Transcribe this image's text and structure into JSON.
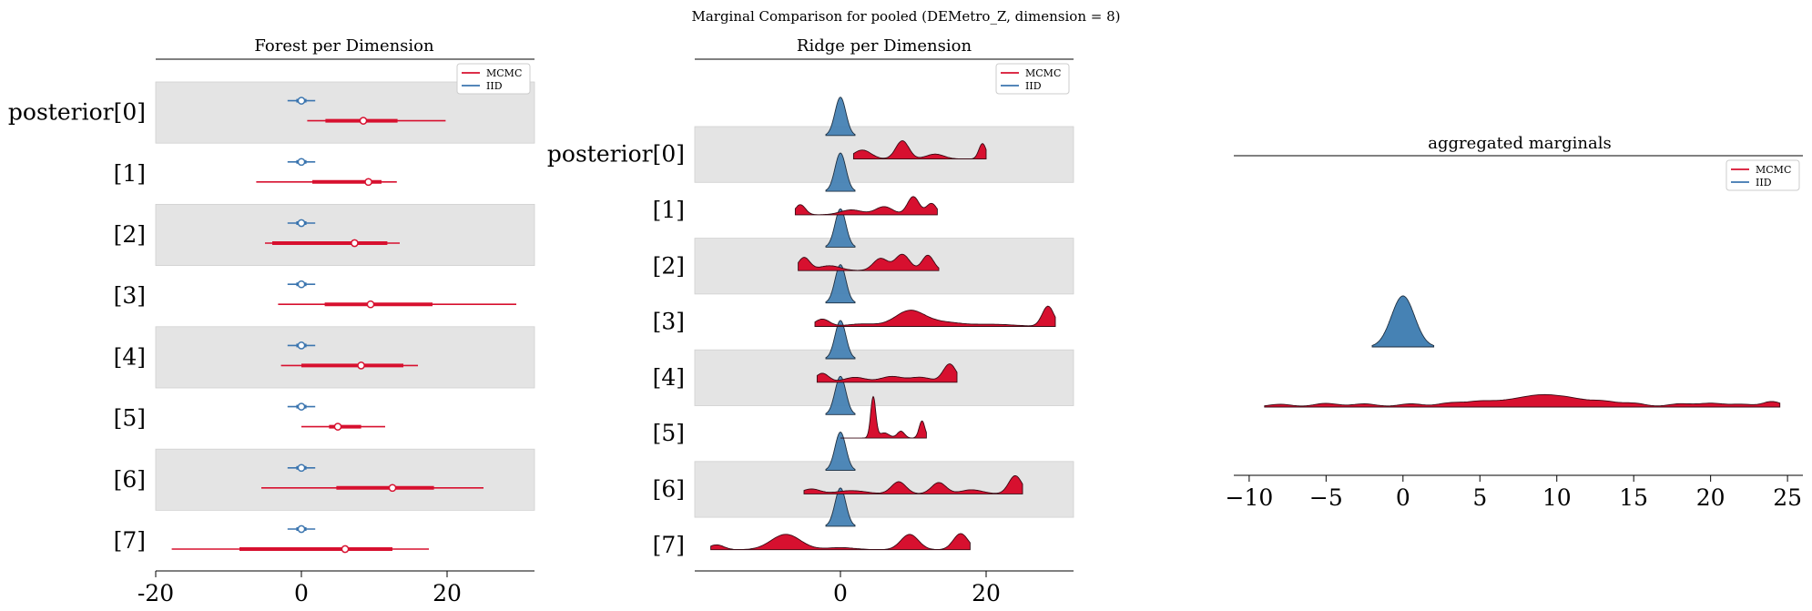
{
  "figure": {
    "suptitle": "Marginal Comparison for pooled (DEMetro_Z, dimension = 8)"
  },
  "legend": {
    "labels": [
      "MCMC",
      "IID"
    ]
  },
  "colors": {
    "mcmc": "#d7102f",
    "iid": "#3b75af",
    "band": "#e4e4e4",
    "iid_fill": "#4682b4"
  },
  "row_labels": [
    "posterior[0]",
    "[1]",
    "[2]",
    "[3]",
    "[4]",
    "[5]",
    "[6]",
    "[7]"
  ],
  "chart_data": [
    {
      "type": "forest",
      "title": "Forest per Dimension",
      "xlim": [
        -20,
        32
      ],
      "xticks": [
        "-20",
        "0",
        "20"
      ],
      "xtick_values": [
        -20,
        0,
        20
      ],
      "series": [
        {
          "name": "MCMC",
          "rows": [
            {
              "mean": 8.5,
              "hdi94": [
                0.8,
                19.8
              ],
              "iqr": [
                3.3,
                13.2
              ]
            },
            {
              "mean": 9.2,
              "hdi94": [
                -6.2,
                13.1
              ],
              "iqr": [
                1.5,
                11.0
              ]
            },
            {
              "mean": 7.3,
              "hdi94": [
                -5.0,
                13.5
              ],
              "iqr": [
                -4.0,
                11.8
              ]
            },
            {
              "mean": 9.5,
              "hdi94": [
                -3.2,
                29.5
              ],
              "iqr": [
                3.2,
                18.0
              ]
            },
            {
              "mean": 8.2,
              "hdi94": [
                -2.8,
                16.0
              ],
              "iqr": [
                0.0,
                14.0
              ]
            },
            {
              "mean": 5.0,
              "hdi94": [
                0.0,
                11.5
              ],
              "iqr": [
                3.8,
                8.2
              ]
            },
            {
              "mean": 12.5,
              "hdi94": [
                -5.5,
                25.0
              ],
              "iqr": [
                4.8,
                18.2
              ]
            },
            {
              "mean": 6.0,
              "hdi94": [
                -17.8,
                17.5
              ],
              "iqr": [
                -8.5,
                12.5
              ]
            }
          ]
        },
        {
          "name": "IID",
          "rows": [
            {
              "mean": 0.0,
              "hdi94": [
                -1.9,
                1.9
              ],
              "iqr": [
                -0.7,
                0.7
              ]
            },
            {
              "mean": 0.0,
              "hdi94": [
                -1.9,
                1.9
              ],
              "iqr": [
                -0.7,
                0.7
              ]
            },
            {
              "mean": 0.0,
              "hdi94": [
                -1.9,
                1.9
              ],
              "iqr": [
                -0.7,
                0.7
              ]
            },
            {
              "mean": 0.0,
              "hdi94": [
                -1.9,
                1.9
              ],
              "iqr": [
                -0.7,
                0.7
              ]
            },
            {
              "mean": 0.0,
              "hdi94": [
                -1.9,
                1.9
              ],
              "iqr": [
                -0.7,
                0.7
              ]
            },
            {
              "mean": 0.0,
              "hdi94": [
                -1.9,
                1.9
              ],
              "iqr": [
                -0.7,
                0.7
              ]
            },
            {
              "mean": 0.0,
              "hdi94": [
                -1.9,
                1.9
              ],
              "iqr": [
                -0.7,
                0.7
              ]
            },
            {
              "mean": 0.0,
              "hdi94": [
                -1.9,
                1.9
              ],
              "iqr": [
                -0.7,
                0.7
              ]
            }
          ]
        }
      ]
    },
    {
      "type": "ridge",
      "title": "Ridge per Dimension",
      "xlim": [
        -20,
        32
      ],
      "xticks": [
        "0",
        "20"
      ],
      "xtick_values": [
        0,
        20
      ],
      "series": [
        {
          "name": "MCMC",
          "rows": [
            {
              "range": [
                1.8,
                20.0
              ],
              "peaks": [
                [
                  3,
                  0.22,
                  1.2
                ],
                [
                  8.5,
                  0.45,
                  0.9
                ],
                [
                  13,
                  0.12,
                  1.2
                ],
                [
                  19.5,
                  0.38,
                  0.5
                ]
              ]
            },
            {
              "range": [
                -6.2,
                13.3
              ],
              "peaks": [
                [
                  -5.5,
                  0.25,
                  0.7
                ],
                [
                  1.5,
                  0.12,
                  1.5
                ],
                [
                  6,
                  0.2,
                  1.2
                ],
                [
                  10,
                  0.45,
                  0.8
                ],
                [
                  12.5,
                  0.28,
                  0.7
                ]
              ]
            },
            {
              "range": [
                -5.8,
                13.5
              ],
              "peaks": [
                [
                  -5.0,
                  0.32,
                  0.8
                ],
                [
                  -1.5,
                  0.12,
                  1.5
                ],
                [
                  5.5,
                  0.3,
                  1.0
                ],
                [
                  8.5,
                  0.4,
                  1.0
                ],
                [
                  12.0,
                  0.38,
                  0.8
                ]
              ]
            },
            {
              "range": [
                -3.5,
                29.5
              ],
              "peaks": [
                [
                  -2.5,
                  0.18,
                  1.0
                ],
                [
                  3,
                  0.06,
                  2.0
                ],
                [
                  9.5,
                  0.38,
                  2.0
                ],
                [
                  14,
                  0.1,
                  2.5
                ],
                [
                  21,
                  0.05,
                  3.0
                ],
                [
                  28.5,
                  0.5,
                  0.8
                ]
              ]
            },
            {
              "range": [
                -3.2,
                16.0
              ],
              "peaks": [
                [
                  -2.5,
                  0.22,
                  0.9
                ],
                [
                  2,
                  0.12,
                  1.5
                ],
                [
                  7,
                  0.14,
                  1.5
                ],
                [
                  11,
                  0.12,
                  1.5
                ],
                [
                  15,
                  0.45,
                  0.9
                ]
              ]
            },
            {
              "range": [
                0.0,
                11.8
              ],
              "peaks": [
                [
                  4.5,
                  1.2,
                  0.35
                ],
                [
                  6,
                  0.15,
                  0.7
                ],
                [
                  8.3,
                  0.2,
                  0.5
                ],
                [
                  11.2,
                  0.5,
                  0.4
                ]
              ]
            },
            {
              "range": [
                -5.0,
                25.0
              ],
              "peaks": [
                [
                  -4,
                  0.12,
                  1.2
                ],
                [
                  1.5,
                  0.08,
                  2.0
                ],
                [
                  8,
                  0.3,
                  1.0
                ],
                [
                  13.5,
                  0.28,
                  1.0
                ],
                [
                  18,
                  0.1,
                  1.5
                ],
                [
                  24,
                  0.45,
                  0.9
                ]
              ]
            },
            {
              "range": [
                -17.8,
                17.8
              ],
              "peaks": [
                [
                  -17,
                  0.12,
                  1.0
                ],
                [
                  -7.5,
                  0.38,
                  2.0
                ],
                [
                  0,
                  0.05,
                  2.0
                ],
                [
                  9.5,
                  0.38,
                  1.2
                ],
                [
                  16.5,
                  0.4,
                  1.0
                ]
              ]
            }
          ]
        },
        {
          "name": "IID",
          "rows": [
            {
              "range": [
                -2,
                2
              ],
              "sd": 0.75
            },
            {
              "range": [
                -2,
                2
              ],
              "sd": 0.75
            },
            {
              "range": [
                -2,
                2
              ],
              "sd": 0.75
            },
            {
              "range": [
                -2,
                2
              ],
              "sd": 0.75
            },
            {
              "range": [
                -2,
                2
              ],
              "sd": 0.75
            },
            {
              "range": [
                -2,
                2
              ],
              "sd": 0.75
            },
            {
              "range": [
                -2,
                2
              ],
              "sd": 0.75
            },
            {
              "range": [
                -2,
                2
              ],
              "sd": 0.75
            }
          ]
        }
      ]
    },
    {
      "type": "ridge",
      "title": "aggregated marginals",
      "xlim": [
        -11,
        26
      ],
      "xticks": [
        "−10",
        "−5",
        "0",
        "5",
        "10",
        "15",
        "20",
        "25"
      ],
      "xtick_values": [
        -10,
        -5,
        0,
        5,
        10,
        15,
        20,
        25
      ],
      "series": [
        {
          "name": "MCMC",
          "range": [
            -9,
            24.5
          ],
          "peaks": [
            [
              -8,
              0.03,
              0.8
            ],
            [
              -5,
              0.04,
              0.8
            ],
            [
              -2.5,
              0.035,
              0.8
            ],
            [
              0.5,
              0.035,
              0.8
            ],
            [
              3,
              0.04,
              0.8
            ],
            [
              5,
              0.06,
              1.0
            ],
            [
              7,
              0.05,
              1.0
            ],
            [
              9,
              0.12,
              1.2
            ],
            [
              11,
              0.07,
              1.0
            ],
            [
              13,
              0.06,
              0.9
            ],
            [
              15,
              0.04,
              0.8
            ],
            [
              18,
              0.035,
              0.8
            ],
            [
              20,
              0.04,
              0.8
            ],
            [
              22,
              0.03,
              0.8
            ],
            [
              24,
              0.06,
              0.6
            ]
          ]
        },
        {
          "name": "IID",
          "range": [
            -2,
            2
          ],
          "sd": 0.75
        }
      ]
    }
  ]
}
